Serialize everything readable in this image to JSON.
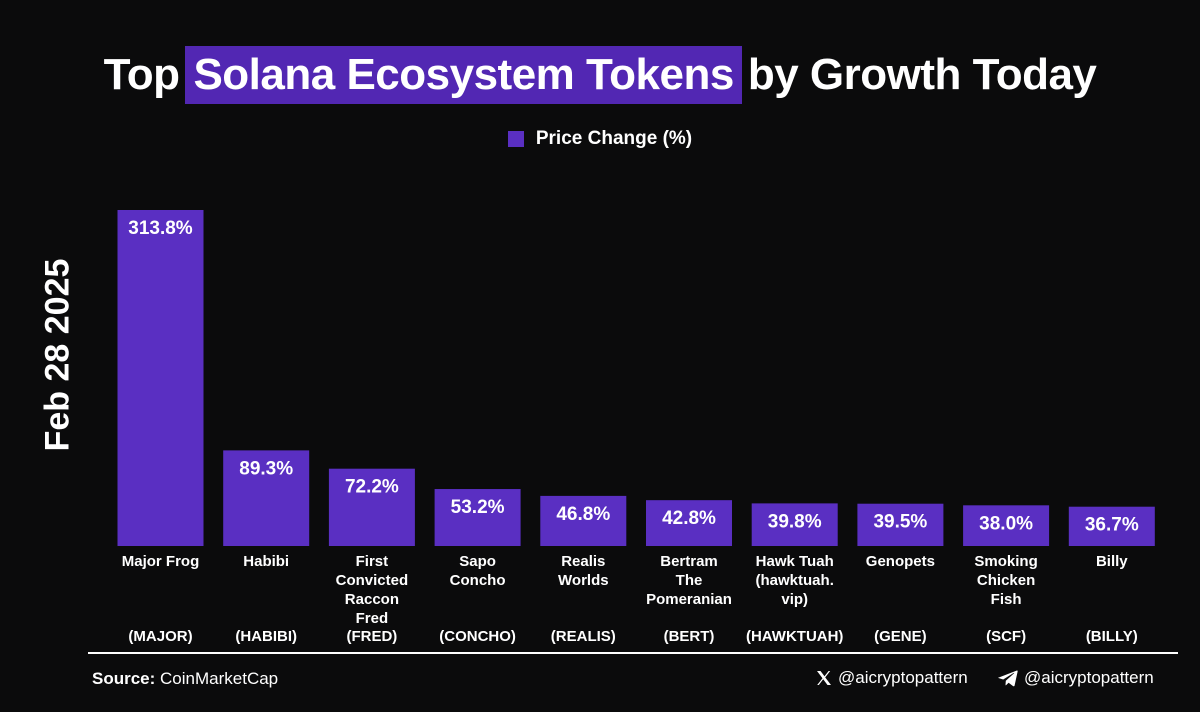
{
  "header": {
    "title_pre": "Top",
    "title_highlight": "Solana Ecosystem Tokens",
    "title_post": "by Growth Today"
  },
  "legend": {
    "label": "Price Change (%)"
  },
  "date_label": "Feb 28 2025",
  "colors": {
    "bar": "#5a2fc2",
    "highlight": "#5227b3",
    "background": "#0b0b0c",
    "text": "#ffffff"
  },
  "chart_data": {
    "type": "bar",
    "title": "Top Solana Ecosystem Tokens by Growth Today",
    "legend": [
      "Price Change (%)"
    ],
    "categories": [
      {
        "name": [
          "Major Frog"
        ],
        "ticker": "(MAJOR)"
      },
      {
        "name": [
          "Habibi"
        ],
        "ticker": "(HABIBI)"
      },
      {
        "name": [
          "First",
          "Convicted",
          "Raccon",
          "Fred"
        ],
        "ticker": "(FRED)"
      },
      {
        "name": [
          "Sapo",
          "Concho"
        ],
        "ticker": "(CONCHO)"
      },
      {
        "name": [
          "Realis",
          "Worlds"
        ],
        "ticker": "(REALIS)"
      },
      {
        "name": [
          "Bertram",
          "The",
          "Pomeranian"
        ],
        "ticker": "(BERT)"
      },
      {
        "name": [
          "Hawk Tuah",
          "(hawktuah.",
          "vip)"
        ],
        "ticker": "(HAWKTUAH)"
      },
      {
        "name": [
          "Genopets"
        ],
        "ticker": "(GENE)"
      },
      {
        "name": [
          "Smoking",
          "Chicken",
          "Fish"
        ],
        "ticker": "(SCF)"
      },
      {
        "name": [
          "Billy"
        ],
        "ticker": "(BILLY)"
      }
    ],
    "series": [
      {
        "name": "Price Change (%)",
        "values": [
          313.8,
          89.3,
          72.2,
          53.2,
          46.8,
          42.8,
          39.8,
          39.5,
          38.0,
          36.7
        ]
      }
    ],
    "value_labels": [
      "313.8%",
      "89.3%",
      "72.2%",
      "53.2%",
      "46.8%",
      "42.8%",
      "39.8%",
      "39.5%",
      "38.0%",
      "36.7%"
    ],
    "ylim": [
      0,
      313.8
    ],
    "grid": false
  },
  "footer": {
    "source_label": "Source:",
    "source_value": "CoinMarketCap",
    "handle_x": "@aicryptopattern",
    "handle_telegram": "@aicryptopattern"
  }
}
